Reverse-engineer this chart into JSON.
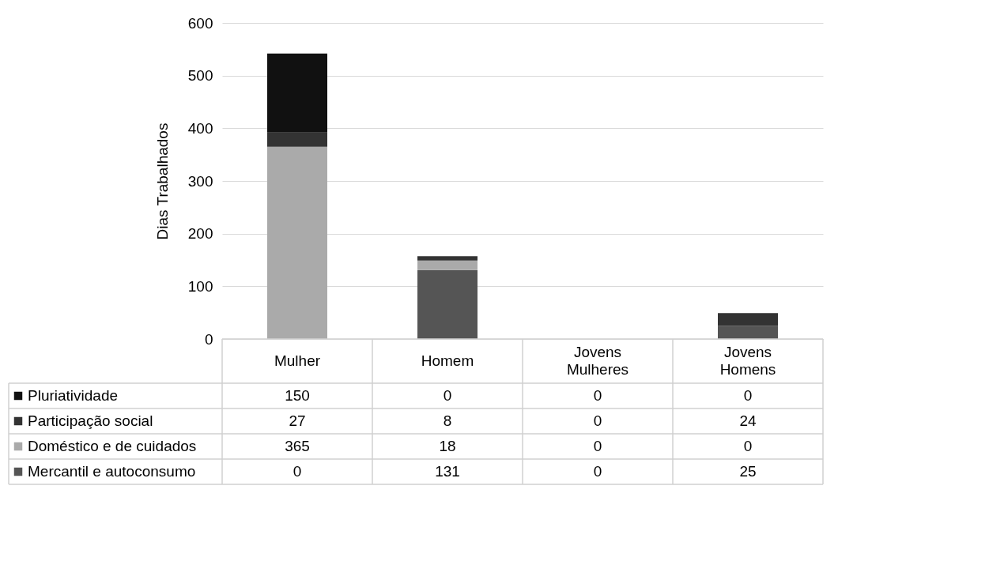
{
  "chart_data": {
    "type": "bar",
    "ylabel": "Dias Trabalhados",
    "categories": [
      "Mulher",
      "Homem",
      "Jovens Mulheres",
      "Jovens Homens"
    ],
    "series": [
      {
        "name": "Mercantil e autoconsumo",
        "color": "#555555",
        "values": [
          0,
          131,
          0,
          25
        ]
      },
      {
        "name": "Doméstico e de cuidados",
        "color": "#aaaaaa",
        "values": [
          365,
          18,
          0,
          0
        ]
      },
      {
        "name": "Participação social",
        "color": "#333333",
        "values": [
          27,
          8,
          0,
          24
        ]
      },
      {
        "name": "Pluriatividade",
        "color": "#111111",
        "values": [
          150,
          0,
          0,
          0
        ]
      }
    ],
    "stacked": true,
    "ylim": [
      0,
      600
    ],
    "yticks": [
      0,
      100,
      200,
      300,
      400,
      500,
      600
    ],
    "grid": "y",
    "legend": "bottom left",
    "data_labels": true
  }
}
